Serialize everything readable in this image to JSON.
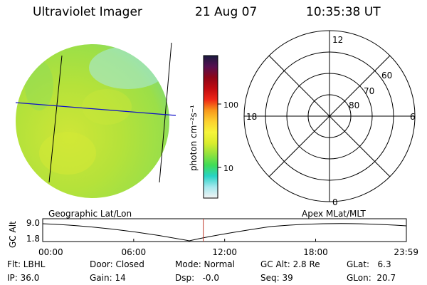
{
  "header": {
    "instrument": "Ultraviolet Imager",
    "date": "21 Aug 07",
    "time": "10:35:38 UT"
  },
  "colorbar": {
    "unit_label": "photon cm⁻²s⁻¹",
    "ticks": [
      "100",
      "10"
    ],
    "stops": [
      "#f4f4f4",
      "#a6e8ee",
      "#27d3c6",
      "#3fdc57",
      "#92e23d",
      "#d9ec2c",
      "#f6f43a",
      "#fcd12f",
      "#f8991b",
      "#ee2617",
      "#c00a10",
      "#8e0518",
      "#561050",
      "#1a1a3f"
    ]
  },
  "polar_grid": {
    "mlt_labels": {
      "top": "12",
      "bottom": "0",
      "left": "18",
      "right": "6"
    },
    "lat_labels": [
      "60",
      "70",
      "80"
    ]
  },
  "timeline": {
    "left_title": "Geographic Lat/Lon",
    "right_title": "Apex MLat/MLT",
    "y_axis_label": "GC Alt",
    "y_ticks": [
      "9.0",
      "1.8"
    ],
    "x_ticks": [
      "00:00",
      "06:00",
      "12:00",
      "18:00",
      "23:59"
    ],
    "cursor_hour": 10.59,
    "cursor_color": "#c0392b"
  },
  "status": {
    "row1": [
      {
        "id": "flt",
        "text": "Flt: LBHL"
      },
      {
        "id": "door",
        "text": "Door: Closed"
      },
      {
        "id": "mode",
        "text": "Mode: Normal"
      },
      {
        "id": "gcalt",
        "text": "GC Alt: 2.8 Re"
      },
      {
        "id": "glat",
        "text": "GLat:   6.3"
      }
    ],
    "row2": [
      {
        "id": "ip",
        "text": "IP: 36.0"
      },
      {
        "id": "gain",
        "text": "Gain: 14"
      },
      {
        "id": "dsp",
        "text": "Dsp:   -0.0"
      },
      {
        "id": "seq",
        "text": "Seq: 39"
      },
      {
        "id": "glon",
        "text": "GLon:  20.7"
      }
    ]
  },
  "colors": {
    "disk_base": "#b7e23c",
    "grid_line": "#1010c8"
  }
}
